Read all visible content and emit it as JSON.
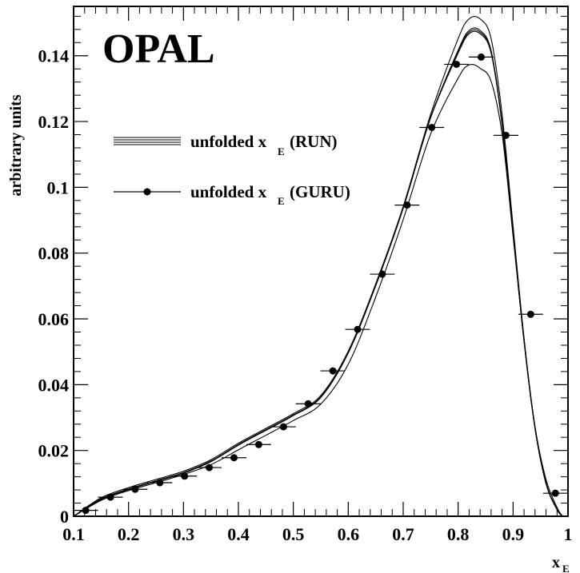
{
  "chart_data": {
    "type": "line",
    "experiment_label": "OPAL",
    "ylabel": "arbitrary units",
    "xlabel_main": "x",
    "xlabel_sub": "E",
    "xlim": [
      0.1,
      1.0
    ],
    "ylim": [
      0,
      0.155
    ],
    "x_ticks": [
      "0.1",
      "0.2",
      "0.3",
      "0.4",
      "0.5",
      "0.6",
      "0.7",
      "0.8",
      "0.9",
      "1"
    ],
    "y_ticks": [
      "0",
      "0.02",
      "0.04",
      "0.06",
      "0.08",
      "0.1",
      "0.12",
      "0.14"
    ],
    "x_tick_values": [
      0.1,
      0.2,
      0.3,
      0.4,
      0.5,
      0.6,
      0.7,
      0.8,
      0.9,
      1.0
    ],
    "y_tick_values": [
      0,
      0.02,
      0.04,
      0.06,
      0.08,
      0.1,
      0.12,
      0.14
    ],
    "legend": [
      {
        "main": "unfolded x",
        "sub": "E",
        "suffix": "(RUN)",
        "style": "band"
      },
      {
        "main": "unfolded x",
        "sub": "E",
        "suffix": "(GURU)",
        "style": "marker"
      }
    ],
    "series": [
      {
        "name": "unfolded x_E (RUN)",
        "style": "band",
        "curves": [
          {
            "x": [
              0.1,
              0.15,
              0.2,
              0.25,
              0.3,
              0.35,
              0.4,
              0.45,
              0.5,
              0.55,
              0.6,
              0.65,
              0.7,
              0.75,
              0.8,
              0.82,
              0.84,
              0.86,
              0.88,
              0.9,
              0.92,
              0.94,
              0.96,
              0.98,
              0.99
            ],
            "y": [
              0,
              0.0056,
              0.0087,
              0.0112,
              0.0137,
              0.0172,
              0.0222,
              0.0267,
              0.0312,
              0.0367,
              0.0502,
              0.0707,
              0.0942,
              0.1222,
              0.1452,
              0.1512,
              0.1512,
              0.1452,
              0.1222,
              0.0882,
              0.0542,
              0.0272,
              0.0102,
              0.0022,
              0
            ]
          },
          {
            "x": [
              0.1,
              0.15,
              0.2,
              0.25,
              0.3,
              0.35,
              0.4,
              0.45,
              0.5,
              0.55,
              0.6,
              0.65,
              0.7,
              0.75,
              0.8,
              0.82,
              0.84,
              0.86,
              0.88,
              0.9,
              0.92,
              0.94,
              0.96,
              0.98,
              0.99
            ],
            "y": [
              0,
              0.0052,
              0.0082,
              0.0107,
              0.0132,
              0.0167,
              0.0217,
              0.0262,
              0.0307,
              0.0362,
              0.0497,
              0.0702,
              0.0937,
              0.1212,
              0.1412,
              0.1472,
              0.1472,
              0.1412,
              0.1192,
              0.0862,
              0.0532,
              0.0267,
              0.01,
              0.0021,
              0
            ]
          },
          {
            "x": [
              0.1,
              0.15,
              0.2,
              0.25,
              0.3,
              0.35,
              0.4,
              0.45,
              0.5,
              0.55,
              0.6,
              0.65,
              0.7,
              0.75,
              0.8,
              0.82,
              0.84,
              0.86,
              0.88,
              0.9,
              0.92,
              0.94,
              0.96,
              0.98,
              0.99
            ],
            "y": [
              0,
              0.0053,
              0.0083,
              0.0108,
              0.0133,
              0.0168,
              0.0218,
              0.0263,
              0.0308,
              0.0363,
              0.0498,
              0.0703,
              0.0938,
              0.1213,
              0.1417,
              0.1477,
              0.1477,
              0.1416,
              0.1195,
              0.0864,
              0.0533,
              0.0268,
              0.01,
              0.0021,
              0
            ]
          },
          {
            "x": [
              0.1,
              0.15,
              0.2,
              0.25,
              0.3,
              0.35,
              0.4,
              0.45,
              0.5,
              0.55,
              0.6,
              0.65,
              0.7,
              0.75,
              0.8,
              0.82,
              0.84,
              0.86,
              0.88,
              0.9,
              0.92,
              0.94,
              0.96,
              0.98,
              0.99
            ],
            "y": [
              0,
              0.0051,
              0.0081,
              0.0106,
              0.0131,
              0.0166,
              0.0216,
              0.0261,
              0.0306,
              0.0361,
              0.0496,
              0.0701,
              0.0936,
              0.1211,
              0.1408,
              0.1467,
              0.1467,
              0.1408,
              0.1189,
              0.086,
              0.0531,
              0.0266,
              0.0099,
              0.002,
              0
            ]
          },
          {
            "x": [
              0.1,
              0.15,
              0.2,
              0.25,
              0.3,
              0.35,
              0.4,
              0.45,
              0.5,
              0.55,
              0.6,
              0.65,
              0.7,
              0.75,
              0.8,
              0.82,
              0.84,
              0.86,
              0.88,
              0.9,
              0.92,
              0.94,
              0.96,
              0.98,
              0.99
            ],
            "y": [
              0,
              0.0048,
              0.0078,
              0.0102,
              0.0127,
              0.0157,
              0.0202,
              0.0246,
              0.0291,
              0.0341,
              0.0462,
              0.0667,
              0.0902,
              0.1162,
              0.1332,
              0.1372,
              0.1362,
              0.1322,
              0.1162,
              0.0852,
              0.0532,
              0.0272,
              0.0112,
              0.0027,
              0
            ]
          }
        ]
      },
      {
        "name": "unfolded x_E (GURU)",
        "style": "marker",
        "x": [
          0.122,
          0.167,
          0.212,
          0.257,
          0.302,
          0.347,
          0.392,
          0.437,
          0.482,
          0.527,
          0.572,
          0.617,
          0.662,
          0.707,
          0.752,
          0.797,
          0.842,
          0.887,
          0.932,
          0.977
        ],
        "y": [
          0.0018,
          0.0058,
          0.0082,
          0.0102,
          0.0122,
          0.0148,
          0.0178,
          0.0218,
          0.0272,
          0.0342,
          0.0442,
          0.0568,
          0.0736,
          0.0946,
          0.1182,
          0.1374,
          0.1396,
          0.1158,
          0.0614,
          0.007
        ],
        "xerr": [
          0.0225,
          0.0225,
          0.0225,
          0.0225,
          0.0225,
          0.0225,
          0.0225,
          0.0225,
          0.0225,
          0.0225,
          0.0225,
          0.0225,
          0.0225,
          0.0225,
          0.0225,
          0.0225,
          0.0225,
          0.0225,
          0.0225,
          0.0225
        ]
      }
    ]
  }
}
